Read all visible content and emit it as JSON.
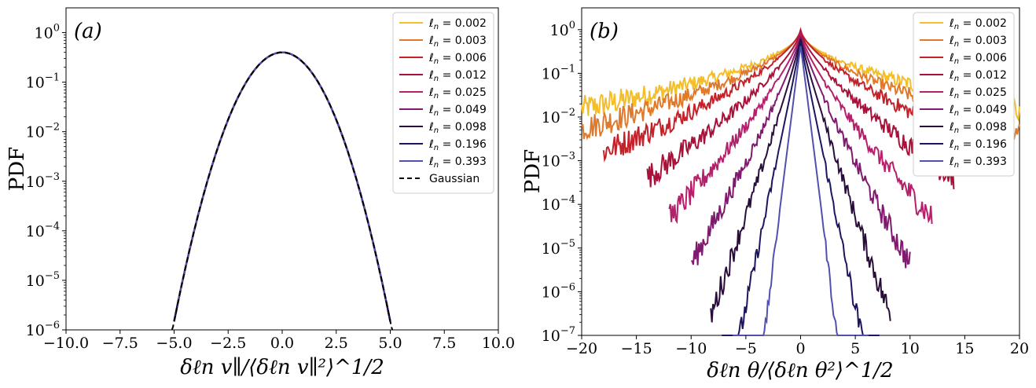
{
  "chart_data": [
    {
      "type": "line",
      "panel": "(a)",
      "ylabel": "PDF",
      "xlabel": "δℓn v∥/⟨δℓn v∥²⟩^1/2",
      "yscale": "log",
      "xlim": [
        -10,
        10
      ],
      "ylim_exponent": [
        -6,
        0.5
      ],
      "x_ticks": [
        -10,
        -7.5,
        -5,
        -2.5,
        0,
        2.5,
        5,
        7.5,
        10
      ],
      "x_tick_labels": [
        "−10.0",
        "−7.5",
        "−5.0",
        "−2.5",
        "0.0",
        "2.5",
        "5.0",
        "7.5",
        "10.0"
      ],
      "y_tick_exponents": [
        0,
        -1,
        -2,
        -3,
        -4,
        -5,
        -6
      ],
      "legend_position": "top-right",
      "series": [
        {
          "name": "ℓn = 0.002",
          "label": "0.002",
          "color": "#f3be2a",
          "half_width": 5.0,
          "shape": "gauss"
        },
        {
          "name": "ℓn = 0.003",
          "label": "0.003",
          "color": "#e07a2a",
          "half_width": 5.0,
          "shape": "gauss"
        },
        {
          "name": "ℓn = 0.006",
          "label": "0.006",
          "color": "#c3222a",
          "half_width": 5.0,
          "shape": "gauss"
        },
        {
          "name": "ℓn = 0.012",
          "label": "0.012",
          "color": "#a8123a",
          "half_width": 5.0,
          "shape": "gauss"
        },
        {
          "name": "ℓn = 0.025",
          "label": "0.025",
          "color": "#b5206b",
          "half_width": 5.0,
          "shape": "gauss"
        },
        {
          "name": "ℓn = 0.049",
          "label": "0.049",
          "color": "#7f1a6e",
          "half_width": 5.0,
          "shape": "gauss"
        },
        {
          "name": "ℓn = 0.098",
          "label": "0.098",
          "color": "#2a0e3a",
          "half_width": 5.0,
          "shape": "gauss"
        },
        {
          "name": "ℓn = 0.196",
          "label": "0.196",
          "color": "#1c1660",
          "half_width": 5.0,
          "shape": "gauss"
        },
        {
          "name": "ℓn = 0.393",
          "label": "0.393",
          "color": "#5050b0",
          "half_width": 4.8,
          "shape": "gauss"
        },
        {
          "name": "Gaussian",
          "label": "Gaussian",
          "color": "#000000",
          "dashed": true,
          "half_width": 5.1,
          "shape": "gauss"
        }
      ]
    },
    {
      "type": "line",
      "panel": "(b)",
      "ylabel": "PDF",
      "xlabel": "δℓn θ/⟨δℓn θ²⟩^1/2",
      "yscale": "log",
      "xlim": [
        -20,
        20
      ],
      "ylim_exponent": [
        -7,
        0.5
      ],
      "x_ticks": [
        -20,
        -15,
        -10,
        -5,
        0,
        5,
        10,
        15,
        20
      ],
      "x_tick_labels": [
        "−20",
        "−15",
        "−10",
        "−5",
        "0",
        "5",
        "10",
        "15",
        "20"
      ],
      "y_tick_exponents": [
        0,
        -1,
        -2,
        -3,
        -4,
        -5,
        -6,
        -7
      ],
      "legend_position": "top-right",
      "series": [
        {
          "name": "ℓn = 0.002",
          "label": "0.002",
          "color": "#f3be2a",
          "peak": 0.95,
          "tail_scale": 2.35,
          "max_x": 20
        },
        {
          "name": "ℓn = 0.003",
          "label": "0.003",
          "color": "#e07a2a",
          "peak": 0.95,
          "tail_scale": 2.3,
          "max_x": 20
        },
        {
          "name": "ℓn = 0.006",
          "label": "0.006",
          "color": "#c3222a",
          "peak": 1.0,
          "tail_scale": 2.05,
          "max_x": 18
        },
        {
          "name": "ℓn = 0.012",
          "label": "0.012",
          "color": "#a8123a",
          "peak": 0.9,
          "tail_scale": 1.65,
          "max_x": 14
        },
        {
          "name": "ℓn = 0.025",
          "label": "0.025",
          "color": "#b5206b",
          "peak": 0.8,
          "tail_scale": 1.35,
          "max_x": 12
        },
        {
          "name": "ℓn = 0.049",
          "label": "0.049",
          "color": "#7f1a6e",
          "peak": 0.72,
          "tail_scale": 1.1,
          "max_x": 10
        },
        {
          "name": "ℓn = 0.098",
          "label": "0.098",
          "color": "#2a0e3a",
          "peak": 0.62,
          "tail_scale": 0.9,
          "max_x": 8.2
        },
        {
          "name": "ℓn = 0.196",
          "label": "0.196",
          "color": "#1c1660",
          "peak": 0.52,
          "tail_scale": 0.7,
          "max_x": 7.2
        },
        {
          "name": "ℓn = 0.393",
          "label": "0.393",
          "color": "#5050b0",
          "peak": 0.42,
          "tail_scale": 0.5,
          "max_x": 6.2
        }
      ]
    }
  ]
}
